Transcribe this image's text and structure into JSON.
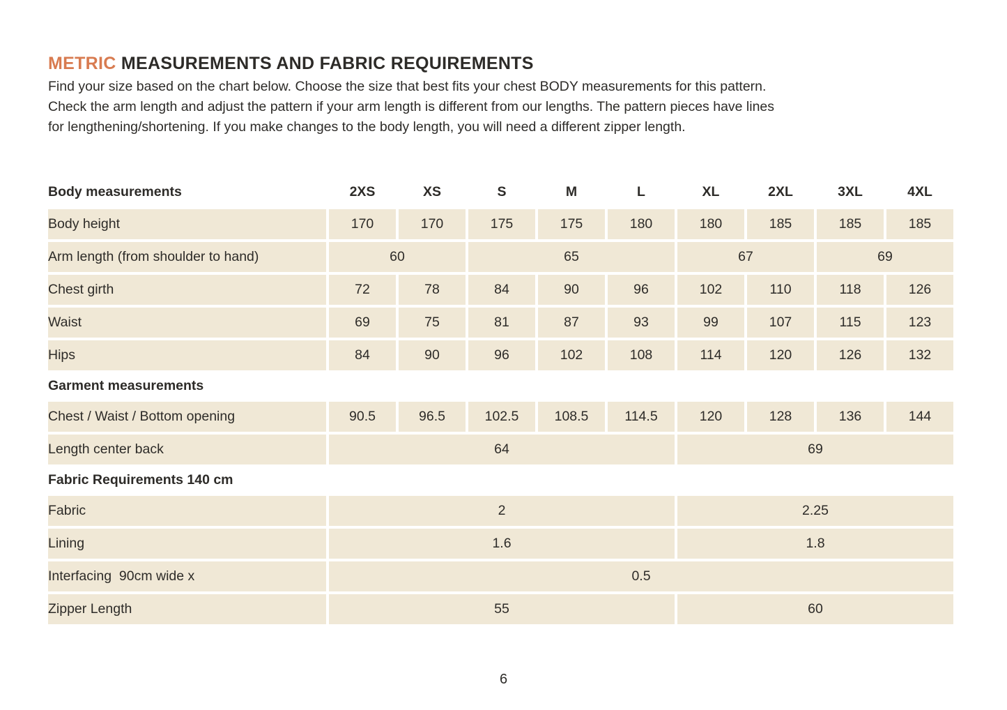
{
  "document": {
    "title": {
      "highlight": "METRIC",
      "rest": " MEASUREMENTS AND FABRIC REQUIREMENTS"
    },
    "intro_lines": [
      "Find your size based on the chart below. Choose the size that best fits your chest BODY measurements for this pattern.",
      "Check the arm length and adjust the pattern if your arm length is different from our lengths. The pattern pieces have lines",
      "for lengthening/shortening. If you make changes to the body length, you will need a different zipper length."
    ],
    "page_number": "6"
  },
  "colors": {
    "accent_orange": "#D87B50",
    "cell_fill_beige": "#F0E8D6",
    "text_dark": "#2D2B28"
  },
  "size_chart": {
    "corner_label": "Body measurements",
    "size_columns": [
      "2XS",
      "XS",
      "S",
      "M",
      "L",
      "XL",
      "2XL",
      "3XL",
      "4XL"
    ],
    "rows": [
      {
        "type": "data",
        "label": "Body height",
        "cells": [
          {
            "v": "170",
            "span": 1
          },
          {
            "v": "170",
            "span": 1
          },
          {
            "v": "175",
            "span": 1
          },
          {
            "v": "175",
            "span": 1
          },
          {
            "v": "180",
            "span": 1
          },
          {
            "v": "180",
            "span": 1
          },
          {
            "v": "185",
            "span": 1
          },
          {
            "v": "185",
            "span": 1
          },
          {
            "v": "185",
            "span": 1
          }
        ]
      },
      {
        "type": "data",
        "label": "Arm length (from shoulder to hand)",
        "cells": [
          {
            "v": "60",
            "span": 2
          },
          {
            "v": "65",
            "span": 3
          },
          {
            "v": "67",
            "span": 2
          },
          {
            "v": "69",
            "span": 2
          }
        ]
      },
      {
        "type": "data",
        "label": "Chest girth",
        "cells": [
          {
            "v": "72",
            "span": 1
          },
          {
            "v": "78",
            "span": 1
          },
          {
            "v": "84",
            "span": 1
          },
          {
            "v": "90",
            "span": 1
          },
          {
            "v": "96",
            "span": 1
          },
          {
            "v": "102",
            "span": 1
          },
          {
            "v": "110",
            "span": 1
          },
          {
            "v": "118",
            "span": 1
          },
          {
            "v": "126",
            "span": 1
          }
        ]
      },
      {
        "type": "data",
        "label": "Waist",
        "cells": [
          {
            "v": "69",
            "span": 1
          },
          {
            "v": "75",
            "span": 1
          },
          {
            "v": "81",
            "span": 1
          },
          {
            "v": "87",
            "span": 1
          },
          {
            "v": "93",
            "span": 1
          },
          {
            "v": "99",
            "span": 1
          },
          {
            "v": "107",
            "span": 1
          },
          {
            "v": "115",
            "span": 1
          },
          {
            "v": "123",
            "span": 1
          }
        ]
      },
      {
        "type": "data",
        "label": "Hips",
        "cells": [
          {
            "v": "84",
            "span": 1
          },
          {
            "v": "90",
            "span": 1
          },
          {
            "v": "96",
            "span": 1
          },
          {
            "v": "102",
            "span": 1
          },
          {
            "v": "108",
            "span": 1
          },
          {
            "v": "114",
            "span": 1
          },
          {
            "v": "120",
            "span": 1
          },
          {
            "v": "126",
            "span": 1
          },
          {
            "v": "132",
            "span": 1
          }
        ]
      },
      {
        "type": "section",
        "label": "Garment measurements"
      },
      {
        "type": "data",
        "label": "Chest / Waist / Bottom opening",
        "cells": [
          {
            "v": "90.5",
            "span": 1
          },
          {
            "v": "96.5",
            "span": 1
          },
          {
            "v": "102.5",
            "span": 1
          },
          {
            "v": "108.5",
            "span": 1
          },
          {
            "v": "114.5",
            "span": 1
          },
          {
            "v": "120",
            "span": 1
          },
          {
            "v": "128",
            "span": 1
          },
          {
            "v": "136",
            "span": 1
          },
          {
            "v": "144",
            "span": 1
          }
        ]
      },
      {
        "type": "data",
        "label": "Length center back",
        "cells": [
          {
            "v": "64",
            "span": 5
          },
          {
            "v": "69",
            "span": 4
          }
        ]
      },
      {
        "type": "section",
        "label": "Fabric Requirements 140 cm"
      },
      {
        "type": "data",
        "label": "Fabric",
        "cells": [
          {
            "v": "2",
            "span": 5
          },
          {
            "v": "2.25",
            "span": 4
          }
        ]
      },
      {
        "type": "data",
        "label": "Lining",
        "cells": [
          {
            "v": "1.6",
            "span": 5
          },
          {
            "v": "1.8",
            "span": 4
          }
        ]
      },
      {
        "type": "data",
        "label": "Interfacing  90cm wide x",
        "cells": [
          {
            "v": "0.5",
            "span": 9
          }
        ]
      },
      {
        "type": "data",
        "label": "Zipper Length",
        "cells": [
          {
            "v": "55",
            "span": 5
          },
          {
            "v": "60",
            "span": 4
          }
        ]
      }
    ]
  }
}
